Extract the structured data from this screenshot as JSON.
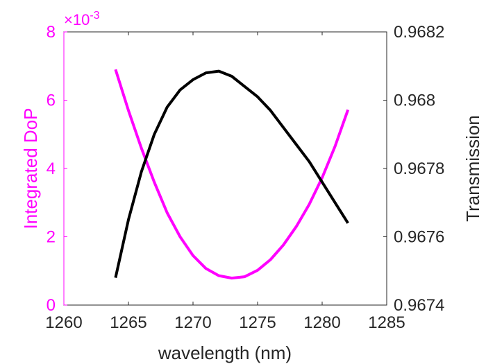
{
  "chart_data": {
    "type": "line",
    "title": "",
    "xlabel": "wavelength (nm)",
    "xlim": [
      1260,
      1285
    ],
    "xticks": [
      "1260",
      "1265",
      "1270",
      "1275",
      "1280",
      "1285"
    ],
    "y_left": {
      "label": "Integrated DoP",
      "lim": [
        0,
        8
      ],
      "ticks": [
        "0",
        "2",
        "4",
        "6",
        "8"
      ],
      "exponent_label": "×10",
      "exponent_power": "-3",
      "color": "#ff00ff"
    },
    "y_right": {
      "label": "Transmission",
      "lim": [
        0.9674,
        0.9682
      ],
      "ticks": [
        "0.9674",
        "0.9676",
        "0.9678",
        "0.968",
        "0.9682"
      ],
      "color": "#000000"
    },
    "series": [
      {
        "axis": "left",
        "color": "#ff00ff",
        "x": [
          1264,
          1265,
          1266,
          1267,
          1268,
          1269,
          1270,
          1271,
          1272,
          1273,
          1274,
          1275,
          1276,
          1277,
          1278,
          1279,
          1280,
          1281,
          1282
        ],
        "y": [
          6.9,
          5.7,
          4.6,
          3.6,
          2.7,
          2.0,
          1.45,
          1.07,
          0.86,
          0.79,
          0.83,
          1.02,
          1.33,
          1.76,
          2.3,
          2.95,
          3.73,
          4.65,
          5.72
        ]
      },
      {
        "axis": "right",
        "color": "#000000",
        "x": [
          1264,
          1265,
          1266,
          1267,
          1268,
          1269,
          1270,
          1271,
          1272,
          1273,
          1274,
          1275,
          1276,
          1277,
          1278,
          1279,
          1280,
          1281,
          1282
        ],
        "y": [
          0.96748,
          0.96765,
          0.96779,
          0.9679,
          0.96798,
          0.96803,
          0.96806,
          0.96808,
          0.968085,
          0.96807,
          0.96804,
          0.96801,
          0.96797,
          0.96792,
          0.96787,
          0.96782,
          0.96776,
          0.9677,
          0.96764
        ]
      }
    ]
  }
}
